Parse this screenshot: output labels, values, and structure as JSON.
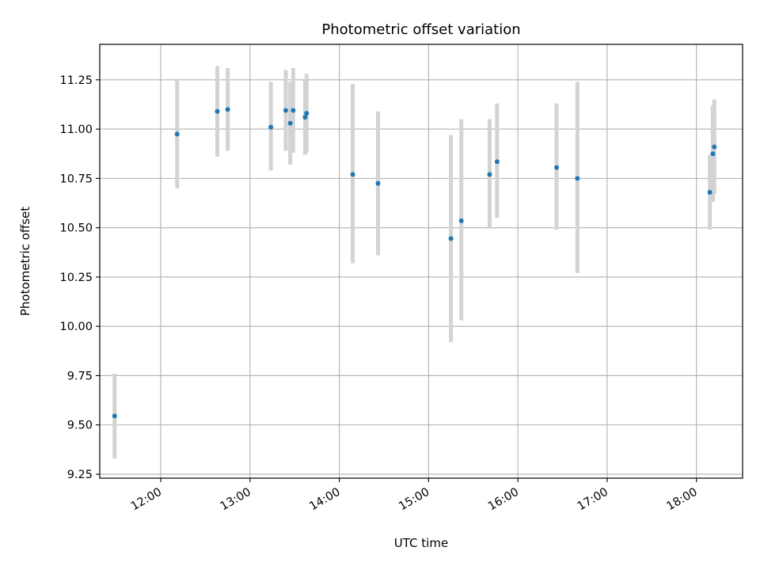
{
  "chart_data": {
    "type": "scatter",
    "title": "Photometric offset variation",
    "xlabel": "UTC time",
    "ylabel": "Photometric offset",
    "x_unit": "hour of day (UTC)",
    "xlim": [
      "11:19",
      "18:31"
    ],
    "ylim": [
      9.23,
      11.43
    ],
    "x_ticks": [
      {
        "value": "12:00",
        "label": "12:00"
      },
      {
        "value": "13:00",
        "label": "13:00"
      },
      {
        "value": "14:00",
        "label": "14:00"
      },
      {
        "value": "15:00",
        "label": "15:00"
      },
      {
        "value": "16:00",
        "label": "16:00"
      },
      {
        "value": "17:00",
        "label": "17:00"
      },
      {
        "value": "18:00",
        "label": "18:00"
      }
    ],
    "y_ticks": [
      {
        "value": 9.25,
        "label": "9.25"
      },
      {
        "value": 9.5,
        "label": "9.50"
      },
      {
        "value": 9.75,
        "label": "9.75"
      },
      {
        "value": 10.0,
        "label": "10.00"
      },
      {
        "value": 10.25,
        "label": "10.25"
      },
      {
        "value": 10.5,
        "label": "10.50"
      },
      {
        "value": 10.75,
        "label": "10.75"
      },
      {
        "value": 11.0,
        "label": "11.00"
      },
      {
        "value": 11.25,
        "label": "11.25"
      }
    ],
    "grid": true,
    "colors": {
      "point": "#1f77b4",
      "errorbar": "#d3d3d3",
      "grid": "#b0b0b0"
    },
    "points": [
      {
        "x": "11:29",
        "y": 9.545,
        "ylow": 9.33,
        "yhigh": 9.76
      },
      {
        "x": "12:11",
        "y": 10.975,
        "ylow": 10.7,
        "yhigh": 11.25
      },
      {
        "x": "12:38",
        "y": 11.09,
        "ylow": 10.86,
        "yhigh": 11.32
      },
      {
        "x": "12:45",
        "y": 11.1,
        "ylow": 10.89,
        "yhigh": 11.31
      },
      {
        "x": "13:14",
        "y": 11.01,
        "ylow": 10.79,
        "yhigh": 11.24
      },
      {
        "x": "13:24",
        "y": 11.095,
        "ylow": 10.89,
        "yhigh": 11.3
      },
      {
        "x": "13:27",
        "y": 11.03,
        "ylow": 10.82,
        "yhigh": 11.24
      },
      {
        "x": "13:29",
        "y": 11.095,
        "ylow": 10.88,
        "yhigh": 11.31
      },
      {
        "x": "13:37",
        "y": 11.06,
        "ylow": 10.87,
        "yhigh": 11.25
      },
      {
        "x": "13:38",
        "y": 11.08,
        "ylow": 10.88,
        "yhigh": 11.28
      },
      {
        "x": "14:09",
        "y": 10.77,
        "ylow": 10.32,
        "yhigh": 11.23
      },
      {
        "x": "14:26",
        "y": 10.725,
        "ylow": 10.36,
        "yhigh": 11.09
      },
      {
        "x": "15:15",
        "y": 10.445,
        "ylow": 9.92,
        "yhigh": 10.97
      },
      {
        "x": "15:22",
        "y": 10.535,
        "ylow": 10.03,
        "yhigh": 11.05
      },
      {
        "x": "15:41",
        "y": 10.77,
        "ylow": 10.5,
        "yhigh": 11.05
      },
      {
        "x": "15:46",
        "y": 10.835,
        "ylow": 10.55,
        "yhigh": 11.13
      },
      {
        "x": "16:26",
        "y": 10.805,
        "ylow": 10.49,
        "yhigh": 11.13
      },
      {
        "x": "16:40",
        "y": 10.75,
        "ylow": 10.27,
        "yhigh": 11.24
      },
      {
        "x": "18:09",
        "y": 10.68,
        "ylow": 10.49,
        "yhigh": 10.87
      },
      {
        "x": "18:11",
        "y": 10.875,
        "ylow": 10.63,
        "yhigh": 11.12
      },
      {
        "x": "18:12",
        "y": 10.91,
        "ylow": 10.67,
        "yhigh": 11.15
      }
    ]
  }
}
